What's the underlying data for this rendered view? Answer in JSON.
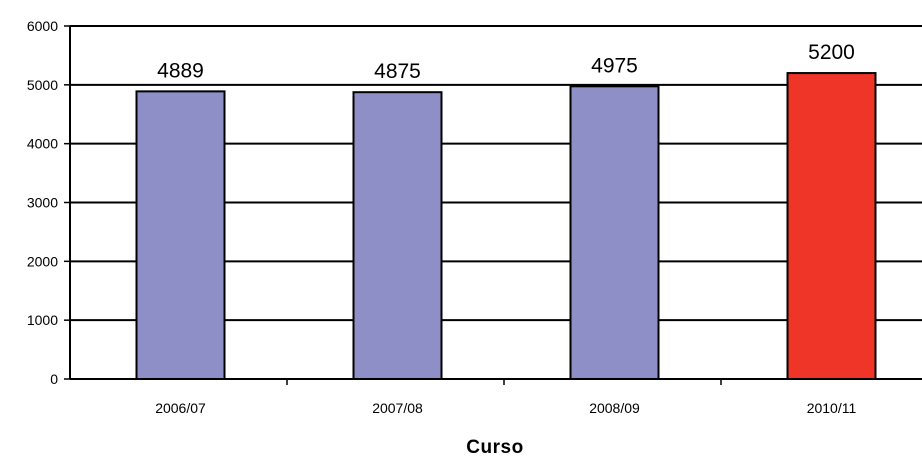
{
  "chart_data": {
    "type": "bar",
    "categories": [
      "2006/07",
      "2007/08",
      "2008/09",
      "2010/11"
    ],
    "values": [
      4889,
      4875,
      4975,
      5200
    ],
    "data_labels": [
      "4889",
      "4875",
      "4975",
      "5200"
    ],
    "bar_colors": [
      "#8f8fc8",
      "#8f8fc8",
      "#8f8fc8",
      "#ee3528"
    ],
    "title": "",
    "xlabel": "Curso",
    "ylabel": "",
    "ylim": [
      0,
      6000
    ],
    "yticks": [
      "0",
      "1000",
      "2000",
      "3000",
      "4000",
      "5000",
      "6000"
    ],
    "grid": true,
    "legend": "none"
  }
}
